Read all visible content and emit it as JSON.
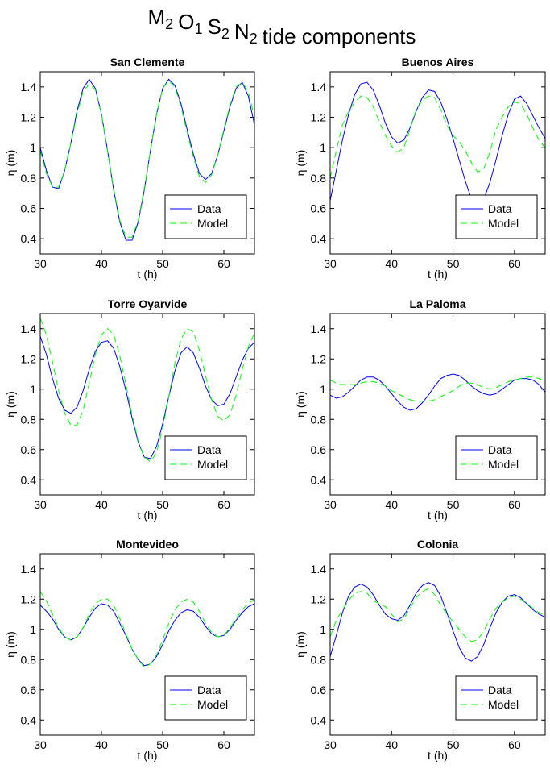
{
  "title": {
    "terms": [
      {
        "symbol": "M",
        "subscript": "2"
      },
      {
        "symbol": "O",
        "subscript": "1"
      },
      {
        "symbol": "S",
        "subscript": "2"
      },
      {
        "symbol": "N",
        "subscript": "2"
      }
    ],
    "text": "tide components"
  },
  "chart_data": [
    {
      "type": "line",
      "title": "San Clemente",
      "xlabel": "t (h)",
      "ylabel": "η (m)",
      "x": [
        30,
        31,
        32,
        33,
        34,
        35,
        36,
        37,
        38,
        39,
        40,
        41,
        42,
        43,
        44,
        45,
        46,
        47,
        48,
        49,
        50,
        51,
        52,
        53,
        54,
        55,
        56,
        57,
        58,
        59,
        60,
        61,
        62,
        63,
        64,
        65
      ],
      "series": [
        {
          "name": "Data",
          "color": "#0000ff",
          "dash": "solid",
          "values": [
            1.0,
            0.85,
            0.74,
            0.73,
            0.85,
            1.03,
            1.24,
            1.39,
            1.45,
            1.39,
            1.22,
            0.98,
            0.72,
            0.51,
            0.39,
            0.39,
            0.51,
            0.72,
            0.98,
            1.22,
            1.39,
            1.45,
            1.41,
            1.29,
            1.12,
            0.96,
            0.83,
            0.79,
            0.83,
            0.95,
            1.11,
            1.27,
            1.39,
            1.43,
            1.34,
            1.15
          ]
        },
        {
          "name": "Model",
          "color": "#00ff00",
          "dash": "dashed",
          "values": [
            0.98,
            0.83,
            0.74,
            0.74,
            0.85,
            1.03,
            1.22,
            1.37,
            1.42,
            1.38,
            1.22,
            0.98,
            0.73,
            0.52,
            0.41,
            0.41,
            0.52,
            0.73,
            0.98,
            1.22,
            1.39,
            1.44,
            1.4,
            1.27,
            1.1,
            0.94,
            0.81,
            0.77,
            0.82,
            0.95,
            1.12,
            1.28,
            1.4,
            1.43,
            1.37,
            1.2
          ]
        }
      ],
      "xlim": [
        30,
        65
      ],
      "xticks": [
        30,
        40,
        50,
        60
      ],
      "ylim": [
        0.3,
        1.5
      ],
      "yticks": [
        0.4,
        0.6,
        0.8,
        1,
        1.2,
        1.4
      ],
      "legend": "lower right"
    },
    {
      "type": "line",
      "title": "Buenos Aires",
      "xlabel": "t (h)",
      "ylabel": "η (m)",
      "x": [
        30,
        31,
        32,
        33,
        34,
        35,
        36,
        37,
        38,
        39,
        40,
        41,
        42,
        43,
        44,
        45,
        46,
        47,
        48,
        49,
        50,
        51,
        52,
        53,
        54,
        55,
        56,
        57,
        58,
        59,
        60,
        61,
        62,
        63,
        64,
        65
      ],
      "series": [
        {
          "name": "Data",
          "color": "#0000ff",
          "dash": "solid",
          "values": [
            0.65,
            0.85,
            1.05,
            1.22,
            1.35,
            1.42,
            1.43,
            1.38,
            1.28,
            1.16,
            1.07,
            1.03,
            1.05,
            1.13,
            1.24,
            1.33,
            1.38,
            1.37,
            1.3,
            1.19,
            1.06,
            0.92,
            0.78,
            0.66,
            0.62,
            0.66,
            0.77,
            0.92,
            1.08,
            1.22,
            1.32,
            1.34,
            1.29,
            1.21,
            1.13,
            1.06
          ]
        },
        {
          "name": "Model",
          "color": "#00ff00",
          "dash": "dashed",
          "values": [
            0.8,
            0.98,
            1.15,
            1.24,
            1.3,
            1.34,
            1.33,
            1.27,
            1.17,
            1.08,
            1.01,
            0.97,
            1.0,
            1.12,
            1.25,
            1.31,
            1.34,
            1.33,
            1.25,
            1.15,
            1.08,
            1.04,
            0.98,
            0.9,
            0.84,
            0.86,
            0.97,
            1.12,
            1.2,
            1.27,
            1.3,
            1.29,
            1.22,
            1.13,
            1.05,
            1.0
          ]
        }
      ],
      "xlim": [
        30,
        65
      ],
      "xticks": [
        30,
        40,
        50,
        60
      ],
      "ylim": [
        0.3,
        1.5
      ],
      "yticks": [
        0.4,
        0.6,
        0.8,
        1,
        1.2,
        1.4
      ],
      "legend": "lower right"
    },
    {
      "type": "line",
      "title": "Torre Oyarvide",
      "xlabel": "t (h)",
      "ylabel": "η (m)",
      "x": [
        30,
        31,
        32,
        33,
        34,
        35,
        36,
        37,
        38,
        39,
        40,
        41,
        42,
        43,
        44,
        45,
        46,
        47,
        48,
        49,
        50,
        51,
        52,
        53,
        54,
        55,
        56,
        57,
        58,
        59,
        60,
        61,
        62,
        63,
        64,
        65
      ],
      "series": [
        {
          "name": "Data",
          "color": "#0000ff",
          "dash": "solid",
          "values": [
            1.35,
            1.23,
            1.07,
            0.94,
            0.86,
            0.84,
            0.88,
            0.99,
            1.13,
            1.25,
            1.31,
            1.32,
            1.27,
            1.15,
            0.99,
            0.81,
            0.65,
            0.55,
            0.54,
            0.62,
            0.77,
            0.95,
            1.12,
            1.24,
            1.28,
            1.24,
            1.14,
            1.02,
            0.93,
            0.89,
            0.9,
            0.97,
            1.08,
            1.19,
            1.27,
            1.31
          ]
        },
        {
          "name": "Model",
          "color": "#00ff00",
          "dash": "dashed",
          "values": [
            1.47,
            1.36,
            1.18,
            0.99,
            0.84,
            0.76,
            0.76,
            0.86,
            1.04,
            1.23,
            1.36,
            1.4,
            1.36,
            1.22,
            1.03,
            0.83,
            0.66,
            0.55,
            0.52,
            0.58,
            0.74,
            0.95,
            1.17,
            1.33,
            1.4,
            1.38,
            1.26,
            1.09,
            0.93,
            0.82,
            0.79,
            0.83,
            0.96,
            1.13,
            1.28,
            1.37
          ]
        }
      ],
      "xlim": [
        30,
        65
      ],
      "xticks": [
        30,
        40,
        50,
        60
      ],
      "ylim": [
        0.3,
        1.5
      ],
      "yticks": [
        0.4,
        0.6,
        0.8,
        1,
        1.2,
        1.4
      ],
      "legend": "lower right"
    },
    {
      "type": "line",
      "title": "La Paloma",
      "xlabel": "t (h)",
      "ylabel": "η (m)",
      "x": [
        30,
        31,
        32,
        33,
        34,
        35,
        36,
        37,
        38,
        39,
        40,
        41,
        42,
        43,
        44,
        45,
        46,
        47,
        48,
        49,
        50,
        51,
        52,
        53,
        54,
        55,
        56,
        57,
        58,
        59,
        60,
        61,
        62,
        63,
        64,
        65
      ],
      "series": [
        {
          "name": "Data",
          "color": "#0000ff",
          "dash": "solid",
          "values": [
            0.96,
            0.94,
            0.95,
            0.98,
            1.02,
            1.06,
            1.08,
            1.08,
            1.06,
            1.02,
            0.97,
            0.92,
            0.88,
            0.86,
            0.87,
            0.91,
            0.96,
            1.02,
            1.07,
            1.09,
            1.1,
            1.09,
            1.06,
            1.02,
            0.99,
            0.97,
            0.96,
            0.97,
            1.0,
            1.03,
            1.06,
            1.07,
            1.07,
            1.06,
            1.03,
            0.98
          ]
        },
        {
          "name": "Model",
          "color": "#00ff00",
          "dash": "dashed",
          "values": [
            1.06,
            1.04,
            1.03,
            1.03,
            1.03,
            1.04,
            1.05,
            1.05,
            1.04,
            1.02,
            0.99,
            0.97,
            0.95,
            0.93,
            0.92,
            0.92,
            0.92,
            0.93,
            0.95,
            0.97,
            0.99,
            1.02,
            1.04,
            1.04,
            1.03,
            1.01,
            1.0,
            1.01,
            1.03,
            1.05,
            1.06,
            1.07,
            1.08,
            1.08,
            1.07,
            1.05
          ]
        }
      ],
      "xlim": [
        30,
        65
      ],
      "xticks": [
        30,
        40,
        50,
        60
      ],
      "ylim": [
        0.3,
        1.5
      ],
      "yticks": [
        0.4,
        0.6,
        0.8,
        1,
        1.2,
        1.4
      ],
      "legend": "lower right"
    },
    {
      "type": "line",
      "title": "Montevideo",
      "xlabel": "t (h)",
      "ylabel": "η (m)",
      "x": [
        30,
        31,
        32,
        33,
        34,
        35,
        36,
        37,
        38,
        39,
        40,
        41,
        42,
        43,
        44,
        45,
        46,
        47,
        48,
        49,
        50,
        51,
        52,
        53,
        54,
        55,
        56,
        57,
        58,
        59,
        60,
        61,
        62,
        63,
        64,
        65
      ],
      "series": [
        {
          "name": "Data",
          "color": "#0000ff",
          "dash": "solid",
          "values": [
            1.16,
            1.12,
            1.07,
            1.0,
            0.95,
            0.93,
            0.95,
            1.01,
            1.08,
            1.14,
            1.17,
            1.16,
            1.12,
            1.04,
            0.96,
            0.87,
            0.8,
            0.76,
            0.77,
            0.82,
            0.9,
            0.99,
            1.06,
            1.11,
            1.13,
            1.12,
            1.08,
            1.02,
            0.97,
            0.95,
            0.96,
            1.0,
            1.06,
            1.11,
            1.15,
            1.17
          ]
        },
        {
          "name": "Model",
          "color": "#00ff00",
          "dash": "dashed",
          "values": [
            1.25,
            1.19,
            1.1,
            1.01,
            0.95,
            0.93,
            0.95,
            1.01,
            1.1,
            1.17,
            1.2,
            1.2,
            1.16,
            1.07,
            0.97,
            0.87,
            0.8,
            0.75,
            0.77,
            0.83,
            0.93,
            1.04,
            1.13,
            1.18,
            1.2,
            1.18,
            1.12,
            1.04,
            0.98,
            0.95,
            0.96,
            1.01,
            1.07,
            1.13,
            1.17,
            1.2
          ]
        }
      ],
      "xlim": [
        30,
        65
      ],
      "xticks": [
        30,
        40,
        50,
        60
      ],
      "ylim": [
        0.3,
        1.5
      ],
      "yticks": [
        0.4,
        0.6,
        0.8,
        1,
        1.2,
        1.4
      ],
      "legend": "lower right"
    },
    {
      "type": "line",
      "title": "Colonia",
      "xlabel": "t (h)",
      "ylabel": "η (m)",
      "x": [
        30,
        31,
        32,
        33,
        34,
        35,
        36,
        37,
        38,
        39,
        40,
        41,
        42,
        43,
        44,
        45,
        46,
        47,
        48,
        49,
        50,
        51,
        52,
        53,
        54,
        55,
        56,
        57,
        58,
        59,
        60,
        61,
        62,
        63,
        64,
        65
      ],
      "series": [
        {
          "name": "Data",
          "color": "#0000ff",
          "dash": "solid",
          "values": [
            0.82,
            0.96,
            1.11,
            1.22,
            1.28,
            1.3,
            1.28,
            1.23,
            1.16,
            1.1,
            1.07,
            1.06,
            1.09,
            1.16,
            1.24,
            1.29,
            1.31,
            1.29,
            1.22,
            1.11,
            0.99,
            0.88,
            0.81,
            0.79,
            0.82,
            0.9,
            1.01,
            1.11,
            1.18,
            1.22,
            1.23,
            1.21,
            1.17,
            1.13,
            1.1,
            1.08
          ]
        },
        {
          "name": "Model",
          "color": "#00ff00",
          "dash": "dashed",
          "values": [
            0.95,
            1.06,
            1.13,
            1.19,
            1.24,
            1.25,
            1.24,
            1.19,
            1.17,
            1.15,
            1.1,
            1.05,
            1.07,
            1.14,
            1.21,
            1.25,
            1.27,
            1.23,
            1.16,
            1.1,
            1.05,
            1.0,
            0.95,
            0.92,
            0.93,
            0.99,
            1.07,
            1.14,
            1.18,
            1.21,
            1.22,
            1.2,
            1.17,
            1.14,
            1.11,
            1.09
          ]
        }
      ],
      "xlim": [
        30,
        65
      ],
      "xticks": [
        30,
        40,
        50,
        60
      ],
      "ylim": [
        0.3,
        1.5
      ],
      "yticks": [
        0.4,
        0.6,
        0.8,
        1,
        1.2,
        1.4
      ],
      "legend": "lower right"
    }
  ]
}
